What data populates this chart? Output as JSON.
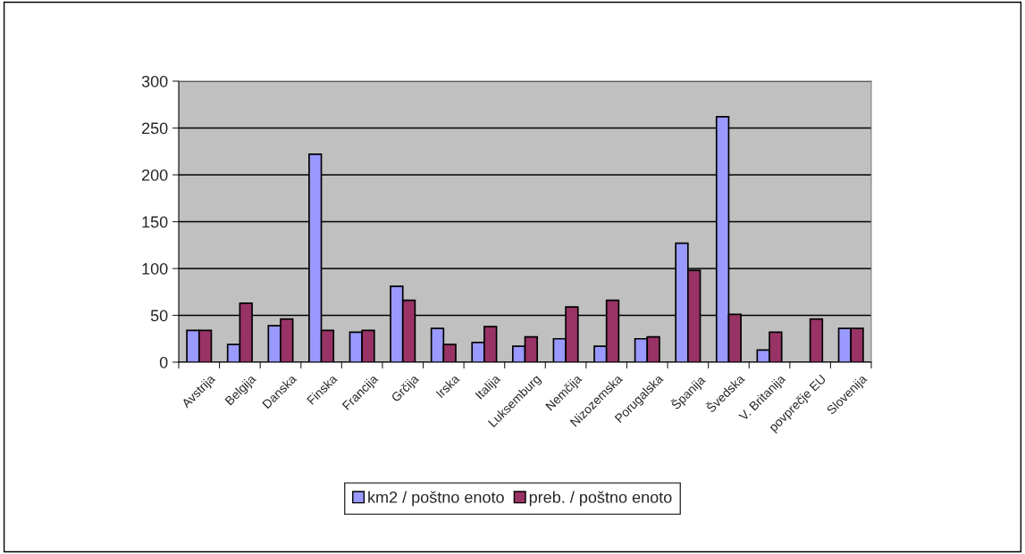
{
  "chart_data": {
    "type": "bar",
    "categories": [
      "Avstrija",
      "Belgija",
      "Danska",
      "Finska",
      "Francija",
      "Grčija",
      "Irska",
      "Italija",
      "Luksemburg",
      "Nemčija",
      "Nizozemska",
      "Porugalska",
      "Španija",
      "Švedska",
      "V. Britanija",
      "povprečje EU",
      "Slovenija"
    ],
    "series": [
      {
        "name": "km2 / poštno enoto",
        "color": "#9999ff",
        "values": [
          34,
          19,
          39,
          222,
          32,
          81,
          36,
          21,
          17,
          25,
          17,
          25,
          127,
          262,
          13,
          null,
          36
        ]
      },
      {
        "name": "preb. / poštno enoto",
        "color": "#993366",
        "values": [
          34,
          63,
          46,
          34,
          34,
          66,
          19,
          38,
          27,
          59,
          66,
          27,
          98,
          51,
          32,
          46,
          36
        ]
      }
    ],
    "ylim": [
      0,
      300
    ],
    "yticks": [
      0,
      50,
      100,
      150,
      200,
      250,
      300
    ],
    "grid": "y",
    "legend": "bottom"
  }
}
